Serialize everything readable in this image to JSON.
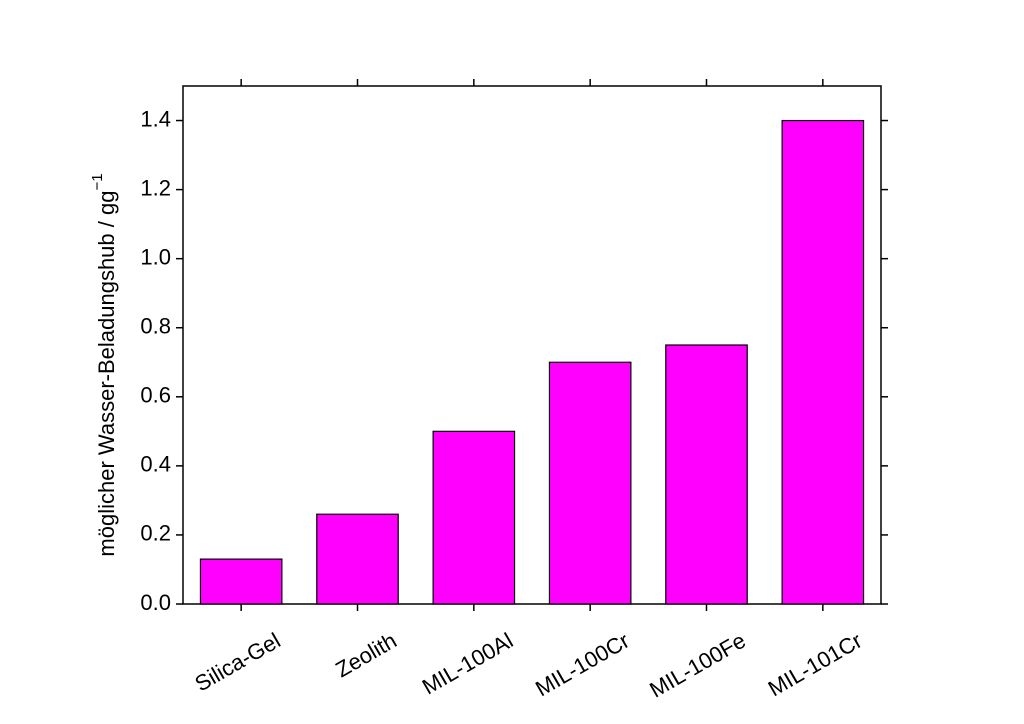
{
  "chart_data": {
    "type": "bar",
    "ylabel": "möglicher Wasser-Beladungshub / gg",
    "ylabel_superscript": "−1",
    "categories": [
      "Silica-Gel",
      "Zeolith",
      "MIL-100Al",
      "MIL-100Cr",
      "MIL-100Fe",
      "MIL-101Cr"
    ],
    "values": [
      0.13,
      0.26,
      0.5,
      0.7,
      0.75,
      1.4
    ],
    "color": "#ff00ff",
    "ylim": [
      0,
      1.5
    ],
    "yticks": [
      {
        "value": 0,
        "label": "0.0"
      },
      0.2,
      0.4,
      0.6,
      0.8,
      {
        "value": 1,
        "label": "1.0"
      },
      1.2,
      1.4
    ],
    "grid": false
  }
}
